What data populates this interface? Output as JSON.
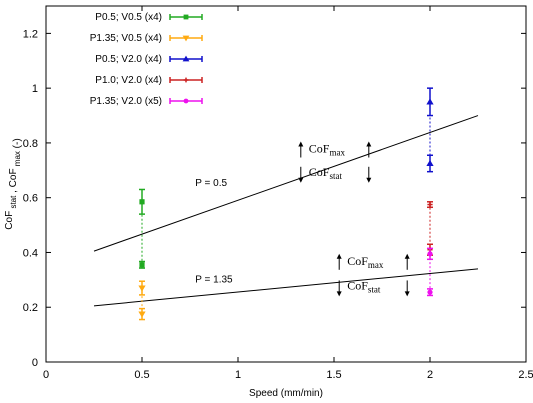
{
  "chart_data": {
    "type": "scatter",
    "xlabel": "Speed (mm/min)",
    "ylabel": "CoF",
    "ylabel_parts": [
      {
        "text": "CoF",
        "sub": "stat"
      },
      {
        "text": " , CoF",
        "sub": "max"
      },
      {
        "text": " (-)",
        "sub": ""
      }
    ],
    "xlim": [
      0,
      2.5
    ],
    "ylim": [
      0,
      1.3
    ],
    "x_ticks": [
      0,
      0.5,
      1,
      1.5,
      2,
      2.5
    ],
    "x_tick_labels": [
      "0",
      "0.5",
      "1",
      "1.5",
      "2",
      "2.5"
    ],
    "y_ticks": [
      0,
      0.2,
      0.4,
      0.6,
      0.8,
      1.0,
      1.2
    ],
    "y_tick_labels": [
      "0",
      "0.2",
      "0.4",
      "0.6",
      "0.8",
      "1",
      "1.2"
    ],
    "grid": false,
    "legend_position": "top-left",
    "series": [
      {
        "name": "P0.5; V0.5 (x4)",
        "color": "#22aa22",
        "marker": "square",
        "points": [
          {
            "x": 0.5,
            "y": 0.585,
            "err": 0.045
          },
          {
            "x": 0.5,
            "y": 0.355,
            "err": 0.012
          }
        ]
      },
      {
        "name": "P1.35; V0.5 (x4)",
        "color": "#ffaa11",
        "marker": "triangle-down",
        "points": [
          {
            "x": 0.5,
            "y": 0.27,
            "err": 0.025
          },
          {
            "x": 0.5,
            "y": 0.175,
            "err": 0.02
          }
        ]
      },
      {
        "name": "P0.5; V2.0 (x4)",
        "color": "#1111cc",
        "marker": "triangle-up",
        "points": [
          {
            "x": 2.0,
            "y": 0.95,
            "err": 0.05
          },
          {
            "x": 2.0,
            "y": 0.725,
            "err": 0.03
          }
        ]
      },
      {
        "name": "P1.0; V2.0 (x4)",
        "color": "#cc2222",
        "marker": "plus",
        "points": [
          {
            "x": 2.0,
            "y": 0.575,
            "err": 0.01
          },
          {
            "x": 2.0,
            "y": 0.41,
            "err": 0.02
          }
        ]
      },
      {
        "name": "P1.35; V2.0 (x5)",
        "color": "#ee11ee",
        "marker": "circle",
        "points": [
          {
            "x": 2.0,
            "y": 0.395,
            "err": 0.02
          },
          {
            "x": 2.0,
            "y": 0.255,
            "err": 0.012
          }
        ]
      }
    ],
    "connectors": [
      {
        "x": 0.5,
        "y1": 0.355,
        "y2": 0.585,
        "color": "#22aa22"
      },
      {
        "x": 0.5,
        "y1": 0.175,
        "y2": 0.27,
        "color": "#ffaa11"
      },
      {
        "x": 2.0,
        "y1": 0.725,
        "y2": 0.95,
        "color": "#1111cc"
      },
      {
        "x": 2.0,
        "y1": 0.41,
        "y2": 0.575,
        "color": "#cc2222"
      },
      {
        "x": 2.0,
        "y1": 0.255,
        "y2": 0.395,
        "color": "#ee11ee"
      }
    ],
    "trend_lines": [
      {
        "label": "P = 0.5",
        "x1": 0.25,
        "y1": 0.405,
        "x2": 2.25,
        "y2": 0.9
      },
      {
        "label": "P = 1.35",
        "x1": 0.25,
        "y1": 0.205,
        "x2": 2.25,
        "y2": 0.34
      }
    ],
    "annotations": [
      {
        "text": "CoF",
        "sub": "max",
        "arrow": "up",
        "x": 1.4,
        "y": 0.765
      },
      {
        "text": "CoF",
        "sub": "stat",
        "arrow": "down",
        "x": 1.4,
        "y": 0.68
      },
      {
        "text": "CoF",
        "sub": "max",
        "arrow": "up",
        "x": 1.6,
        "y": 0.355
      },
      {
        "text": "CoF",
        "sub": "stat",
        "arrow": "down",
        "x": 1.6,
        "y": 0.265
      }
    ]
  }
}
